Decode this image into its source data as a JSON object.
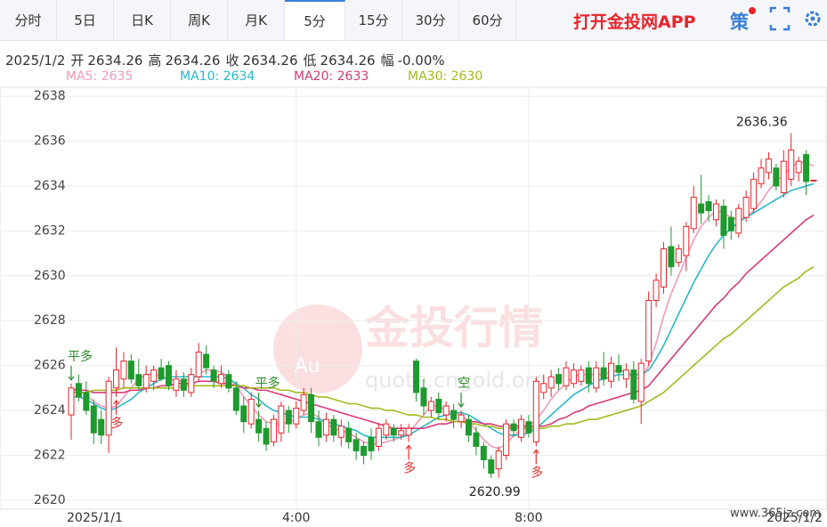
{
  "tabs": [
    "分时",
    "5日",
    "日K",
    "周K",
    "月K",
    "5分",
    "15分",
    "30分",
    "60分"
  ],
  "active_tab": 5,
  "app_link": "打开金投网APP",
  "icon_text": "策",
  "info": {
    "date": "2025/1/2",
    "fields": [
      {
        "label": "开",
        "value": 2634.26
      },
      {
        "label": "高",
        "value": 2634.26
      },
      {
        "label": "收",
        "value": 2634.26
      },
      {
        "label": "低",
        "value": 2634.26
      },
      {
        "label": "幅",
        "value": "-0.00%"
      }
    ]
  },
  "watermarks": {
    "logo": "Au",
    "brand": "金投行情",
    "site": "quote.cngold.org",
    "corner": "www.365jz.com"
  },
  "chart_data": {
    "type": "candlestick",
    "categories": [
      "2025/1/1",
      null,
      null,
      null,
      null,
      null,
      null,
      null,
      null,
      null,
      null,
      null,
      null,
      null,
      null,
      null,
      null,
      null,
      null,
      null,
      null,
      null,
      null,
      null,
      null,
      null,
      null,
      null,
      null,
      null,
      "4:00",
      null,
      null,
      null,
      null,
      null,
      null,
      null,
      null,
      null,
      null,
      null,
      null,
      null,
      null,
      null,
      null,
      null,
      null,
      null,
      null,
      null,
      null,
      null,
      null,
      null,
      null,
      null,
      null,
      null,
      null,
      "8:00",
      null,
      null,
      null,
      null,
      null,
      null,
      null,
      null,
      null,
      null,
      null,
      null,
      null,
      null,
      null,
      null,
      null,
      null,
      null,
      null,
      null,
      null,
      null,
      null,
      null,
      null,
      null,
      null,
      null,
      null,
      null,
      null,
      null,
      null,
      null,
      null,
      null,
      "2025/1/2"
    ],
    "ohlc": [
      [
        2623.8,
        2625.2,
        2622.7,
        2625.0
      ],
      [
        2625.2,
        2625.6,
        2624.4,
        2624.6
      ],
      [
        2624.8,
        2625.3,
        2623.8,
        2624.0
      ],
      [
        2624.2,
        2624.5,
        2622.5,
        2623.0
      ],
      [
        2623.6,
        2624.0,
        2622.5,
        2622.9
      ],
      [
        2622.9,
        2625.5,
        2622.1,
        2625.3
      ],
      [
        2625.0,
        2626.8,
        2624.6,
        2625.8
      ],
      [
        2625.4,
        2626.6,
        2625.0,
        2626.2
      ],
      [
        2626.2,
        2626.5,
        2625.2,
        2625.4
      ],
      [
        2625.6,
        2626.3,
        2624.9,
        2625.1
      ],
      [
        2625.0,
        2626.0,
        2624.8,
        2625.6
      ],
      [
        2625.3,
        2626.0,
        2624.9,
        2625.8
      ],
      [
        2625.9,
        2626.3,
        2625.3,
        2625.4
      ],
      [
        2626.0,
        2626.2,
        2624.9,
        2625.1
      ],
      [
        2624.9,
        2625.8,
        2624.6,
        2625.4
      ],
      [
        2625.4,
        2625.7,
        2624.6,
        2624.9
      ],
      [
        2624.8,
        2625.9,
        2624.6,
        2625.6
      ],
      [
        2625.5,
        2627.0,
        2625.3,
        2626.6
      ],
      [
        2626.5,
        2626.9,
        2625.6,
        2625.9
      ],
      [
        2625.8,
        2626.0,
        2625.0,
        2625.3
      ],
      [
        2625.2,
        2626.0,
        2625.0,
        2625.6
      ],
      [
        2625.6,
        2625.8,
        2624.8,
        2625.0
      ],
      [
        2625.0,
        2625.3,
        2623.8,
        2624.0
      ],
      [
        2624.2,
        2624.6,
        2623.0,
        2623.5
      ],
      [
        2623.4,
        2624.8,
        2623.2,
        2624.5
      ],
      [
        2623.6,
        2624.0,
        2622.6,
        2623.0
      ],
      [
        2623.2,
        2623.5,
        2622.2,
        2622.5
      ],
      [
        2622.6,
        2623.8,
        2622.4,
        2623.6
      ],
      [
        2623.0,
        2624.4,
        2622.6,
        2624.2
      ],
      [
        2624.0,
        2624.2,
        2623.0,
        2623.4
      ],
      [
        2623.4,
        2624.4,
        2623.2,
        2624.1
      ],
      [
        2624.0,
        2625.0,
        2623.8,
        2624.7
      ],
      [
        2624.7,
        2625.0,
        2623.0,
        2623.5
      ],
      [
        2623.5,
        2624.0,
        2622.4,
        2622.8
      ],
      [
        2622.9,
        2623.9,
        2622.6,
        2623.6
      ],
      [
        2623.6,
        2623.8,
        2622.6,
        2622.9
      ],
      [
        2622.8,
        2623.6,
        2622.4,
        2623.3
      ],
      [
        2623.2,
        2623.5,
        2622.3,
        2622.6
      ],
      [
        2622.7,
        2623.0,
        2621.8,
        2622.2
      ],
      [
        2622.4,
        2622.6,
        2621.6,
        2622.0
      ],
      [
        2622.8,
        2623.2,
        2621.8,
        2622.2
      ],
      [
        2622.4,
        2623.4,
        2622.2,
        2623.2
      ],
      [
        2622.9,
        2623.6,
        2622.7,
        2623.4
      ],
      [
        2623.2,
        2623.4,
        2622.6,
        2622.9
      ],
      [
        2622.9,
        2623.4,
        2622.7,
        2623.1
      ],
      [
        2622.9,
        2623.4,
        2622.6,
        2623.2
      ],
      [
        2626.2,
        2626.3,
        2624.4,
        2624.8
      ],
      [
        2625.0,
        2625.4,
        2623.8,
        2624.2
      ],
      [
        2624.0,
        2624.6,
        2623.7,
        2624.4
      ],
      [
        2624.5,
        2624.8,
        2623.6,
        2623.9
      ],
      [
        2623.8,
        2624.4,
        2623.5,
        2624.2
      ],
      [
        2624.0,
        2624.3,
        2623.2,
        2623.6
      ],
      [
        2623.5,
        2624.0,
        2623.2,
        2623.8
      ],
      [
        2623.6,
        2623.8,
        2622.6,
        2622.9
      ],
      [
        2623.0,
        2623.3,
        2622.0,
        2622.4
      ],
      [
        2622.4,
        2622.6,
        2621.4,
        2621.8
      ],
      [
        2621.8,
        2622.0,
        2620.99,
        2621.2
      ],
      [
        2621.4,
        2622.4,
        2621.0,
        2622.2
      ],
      [
        2622.0,
        2623.6,
        2621.8,
        2623.4
      ],
      [
        2623.4,
        2623.6,
        2622.8,
        2623.1
      ],
      [
        2622.8,
        2623.8,
        2622.6,
        2623.6
      ],
      [
        2623.5,
        2623.8,
        2622.8,
        2623.0
      ],
      [
        2622.6,
        2625.5,
        2622.4,
        2625.3
      ],
      [
        2624.8,
        2625.6,
        2624.5,
        2625.2
      ],
      [
        2625.0,
        2625.8,
        2624.6,
        2625.5
      ],
      [
        2625.6,
        2625.9,
        2624.9,
        2625.2
      ],
      [
        2625.1,
        2626.2,
        2624.9,
        2625.9
      ],
      [
        2625.2,
        2626.1,
        2625.0,
        2625.8
      ],
      [
        2625.3,
        2626.0,
        2625.1,
        2625.8
      ],
      [
        2625.9,
        2626.2,
        2624.8,
        2625.2
      ],
      [
        2625.0,
        2626.2,
        2624.8,
        2625.9
      ],
      [
        2625.9,
        2626.6,
        2625.1,
        2625.4
      ],
      [
        2625.3,
        2626.4,
        2625.0,
        2626.1
      ],
      [
        2626.0,
        2626.5,
        2625.3,
        2625.7
      ],
      [
        2625.4,
        2626.1,
        2625.0,
        2625.8
      ],
      [
        2625.8,
        2626.2,
        2624.3,
        2624.5
      ],
      [
        2624.4,
        2626.3,
        2623.4,
        2626.1
      ],
      [
        2626.2,
        2629.3,
        2626.0,
        2628.9
      ],
      [
        2628.9,
        2630.1,
        2628.6,
        2629.8
      ],
      [
        2629.5,
        2631.5,
        2629.2,
        2631.2
      ],
      [
        2631.3,
        2632.2,
        2630.0,
        2630.4
      ],
      [
        2630.6,
        2631.4,
        2630.4,
        2631.2
      ],
      [
        2630.9,
        2632.4,
        2630.2,
        2632.2
      ],
      [
        2632.1,
        2634.0,
        2631.9,
        2633.5
      ],
      [
        2633.2,
        2634.5,
        2632.3,
        2632.8
      ],
      [
        2633.3,
        2633.6,
        2632.4,
        2632.9
      ],
      [
        2632.5,
        2633.4,
        2632.2,
        2633.2
      ],
      [
        2633.1,
        2633.4,
        2631.2,
        2631.8
      ],
      [
        2632.6,
        2632.9,
        2631.6,
        2632.0
      ],
      [
        2631.9,
        2633.2,
        2631.7,
        2633.0
      ],
      [
        2632.6,
        2633.8,
        2632.4,
        2633.5
      ],
      [
        2633.0,
        2634.6,
        2632.8,
        2634.3
      ],
      [
        2634.1,
        2635.2,
        2633.9,
        2634.8
      ],
      [
        2634.6,
        2635.5,
        2634.3,
        2635.2
      ],
      [
        2634.8,
        2635.0,
        2633.8,
        2634.0
      ],
      [
        2633.7,
        2635.6,
        2633.5,
        2635.1
      ],
      [
        2634.3,
        2636.36,
        2634.0,
        2635.6
      ],
      [
        2634.6,
        2635.3,
        2634.2,
        2635.1
      ],
      [
        2635.4,
        2635.6,
        2633.6,
        2634.2
      ],
      [
        2634.26,
        2634.26,
        2634.26,
        2634.26
      ]
    ],
    "up_color": "#e8242b",
    "down_color": "#1f9a2e",
    "series": [
      {
        "name": "MA5: 2635",
        "color": "#f09ab8",
        "values": [
          2625.0,
          2624.9,
          2624.7,
          2624.4,
          2624.2,
          2624.1,
          2624.2,
          2624.6,
          2625.0,
          2625.4,
          2625.6,
          2625.6,
          2625.5,
          2625.4,
          2625.3,
          2625.3,
          2625.4,
          2625.6,
          2625.8,
          2625.8,
          2625.7,
          2625.5,
          2625.1,
          2624.6,
          2624.2,
          2623.8,
          2623.5,
          2623.4,
          2623.4,
          2623.5,
          2623.6,
          2623.8,
          2623.9,
          2623.7,
          2623.4,
          2623.2,
          2623.1,
          2623.0,
          2622.8,
          2622.6,
          2622.5,
          2622.5,
          2622.6,
          2622.7,
          2622.8,
          2623.0,
          2623.4,
          2623.8,
          2624.2,
          2624.2,
          2624.0,
          2623.9,
          2623.8,
          2623.5,
          2623.1,
          2622.7,
          2622.4,
          2622.3,
          2622.5,
          2622.9,
          2623.1,
          2623.3,
          2623.6,
          2624.0,
          2624.5,
          2624.9,
          2625.2,
          2625.5,
          2625.6,
          2625.6,
          2625.6,
          2625.6,
          2625.7,
          2625.8,
          2625.7,
          2625.5,
          2625.4,
          2626.0,
          2627.0,
          2628.2,
          2629.2,
          2630.0,
          2630.8,
          2631.6,
          2632.2,
          2632.6,
          2632.9,
          2632.8,
          2632.6,
          2632.5,
          2632.6,
          2632.9,
          2633.3,
          2633.8,
          2634.2,
          2634.5,
          2634.8,
          2635.1,
          2635.0,
          2634.9
        ]
      },
      {
        "name": "MA10: 2634",
        "color": "#2bb8c8",
        "values": [
          2624.6,
          2624.6,
          2624.5,
          2624.3,
          2624.1,
          2624.0,
          2624.1,
          2624.3,
          2624.5,
          2624.8,
          2625.0,
          2625.2,
          2625.4,
          2625.5,
          2625.5,
          2625.5,
          2625.5,
          2625.5,
          2625.5,
          2625.5,
          2625.5,
          2625.4,
          2625.2,
          2625.0,
          2624.7,
          2624.5,
          2624.2,
          2624.0,
          2623.9,
          2623.8,
          2623.7,
          2623.7,
          2623.7,
          2623.6,
          2623.5,
          2623.4,
          2623.3,
          2623.2,
          2623.1,
          2622.9,
          2622.8,
          2622.8,
          2622.8,
          2622.8,
          2622.8,
          2622.9,
          2623.1,
          2623.3,
          2623.5,
          2623.7,
          2623.8,
          2623.9,
          2623.9,
          2623.8,
          2623.6,
          2623.4,
          2623.2,
          2623.0,
          2622.9,
          2622.9,
          2622.9,
          2623.0,
          2623.2,
          2623.5,
          2623.8,
          2624.1,
          2624.4,
          2624.7,
          2624.9,
          2625.1,
          2625.3,
          2625.4,
          2625.5,
          2625.6,
          2625.6,
          2625.6,
          2625.6,
          2625.8,
          2626.3,
          2626.9,
          2627.6,
          2628.3,
          2629.0,
          2629.7,
          2630.3,
          2630.9,
          2631.4,
          2631.8,
          2632.1,
          2632.4,
          2632.6,
          2632.8,
          2633.0,
          2633.2,
          2633.4,
          2633.6,
          2633.8,
          2633.9,
          2634.0,
          2634.1
        ]
      },
      {
        "name": "MA20: 2633",
        "color": "#d8397a",
        "values": [
          2624.9,
          2624.9,
          2624.9,
          2624.8,
          2624.8,
          2624.8,
          2624.8,
          2624.8,
          2624.9,
          2624.9,
          2625.0,
          2625.0,
          2625.1,
          2625.1,
          2625.2,
          2625.2,
          2625.2,
          2625.3,
          2625.3,
          2625.3,
          2625.2,
          2625.2,
          2625.1,
          2625.0,
          2625.0,
          2624.9,
          2624.9,
          2624.8,
          2624.7,
          2624.6,
          2624.5,
          2624.4,
          2624.3,
          2624.2,
          2624.1,
          2624.0,
          2623.9,
          2623.8,
          2623.7,
          2623.6,
          2623.5,
          2623.4,
          2623.3,
          2623.2,
          2623.2,
          2623.2,
          2623.2,
          2623.2,
          2623.3,
          2623.4,
          2623.4,
          2623.5,
          2623.5,
          2623.5,
          2623.5,
          2623.4,
          2623.4,
          2623.3,
          2623.3,
          2623.3,
          2623.3,
          2623.3,
          2623.3,
          2623.3,
          2623.4,
          2623.6,
          2623.7,
          2623.9,
          2624.0,
          2624.2,
          2624.3,
          2624.4,
          2624.5,
          2624.6,
          2624.7,
          2624.8,
          2624.9,
          2625.1,
          2625.5,
          2625.9,
          2626.3,
          2626.7,
          2627.1,
          2627.5,
          2627.9,
          2628.3,
          2628.7,
          2629.0,
          2629.4,
          2629.7,
          2630.1,
          2630.4,
          2630.7,
          2631.0,
          2631.3,
          2631.6,
          2631.9,
          2632.2,
          2632.5,
          2632.7
        ]
      },
      {
        "name": "MA30: 2630",
        "color": "#a6b81f",
        "values": [
          2624.8,
          2624.8,
          2624.8,
          2624.9,
          2624.9,
          2624.9,
          2624.9,
          2625.0,
          2625.0,
          2625.0,
          2625.0,
          2625.0,
          2625.0,
          2625.0,
          2625.0,
          2625.1,
          2625.1,
          2625.1,
          2625.1,
          2625.1,
          2625.1,
          2625.1,
          2625.1,
          2625.1,
          2625.0,
          2625.0,
          2625.0,
          2625.0,
          2624.9,
          2624.9,
          2624.8,
          2624.8,
          2624.7,
          2624.6,
          2624.6,
          2624.5,
          2624.4,
          2624.3,
          2624.3,
          2624.2,
          2624.1,
          2624.1,
          2624.0,
          2624.0,
          2623.9,
          2623.8,
          2623.8,
          2623.7,
          2623.7,
          2623.6,
          2623.6,
          2623.5,
          2623.5,
          2623.4,
          2623.4,
          2623.3,
          2623.3,
          2623.2,
          2623.2,
          2623.2,
          2623.2,
          2623.2,
          2623.2,
          2623.2,
          2623.3,
          2623.3,
          2623.4,
          2623.4,
          2623.5,
          2623.6,
          2623.6,
          2623.7,
          2623.8,
          2623.9,
          2624.0,
          2624.1,
          2624.2,
          2624.4,
          2624.6,
          2624.8,
          2625.1,
          2625.4,
          2625.7,
          2626.0,
          2626.3,
          2626.6,
          2626.9,
          2627.2,
          2627.4,
          2627.7,
          2628.0,
          2628.3,
          2628.6,
          2628.9,
          2629.2,
          2629.5,
          2629.7,
          2629.9,
          2630.2,
          2630.4
        ]
      }
    ],
    "ylim": [
      2619.6,
      2638.4
    ],
    "yticks": [
      2620,
      2622,
      2624,
      2626,
      2628,
      2630,
      2632,
      2634,
      2636,
      2638
    ],
    "grid": true,
    "signals": [
      {
        "index": 0,
        "text": "平多",
        "direction": "down",
        "color": "#2a8a2a"
      },
      {
        "index": 6,
        "text": "多",
        "direction": "up",
        "color": "#e03030"
      },
      {
        "index": 25,
        "text": "平多",
        "direction": "down",
        "color": "#2a8a2a"
      },
      {
        "index": 45,
        "text": "多",
        "direction": "up",
        "color": "#e03030"
      },
      {
        "index": 52,
        "text": "空",
        "direction": "down",
        "color": "#2a8a2a"
      },
      {
        "index": 62,
        "text": "多",
        "direction": "up",
        "color": "#e03030"
      }
    ]
  }
}
